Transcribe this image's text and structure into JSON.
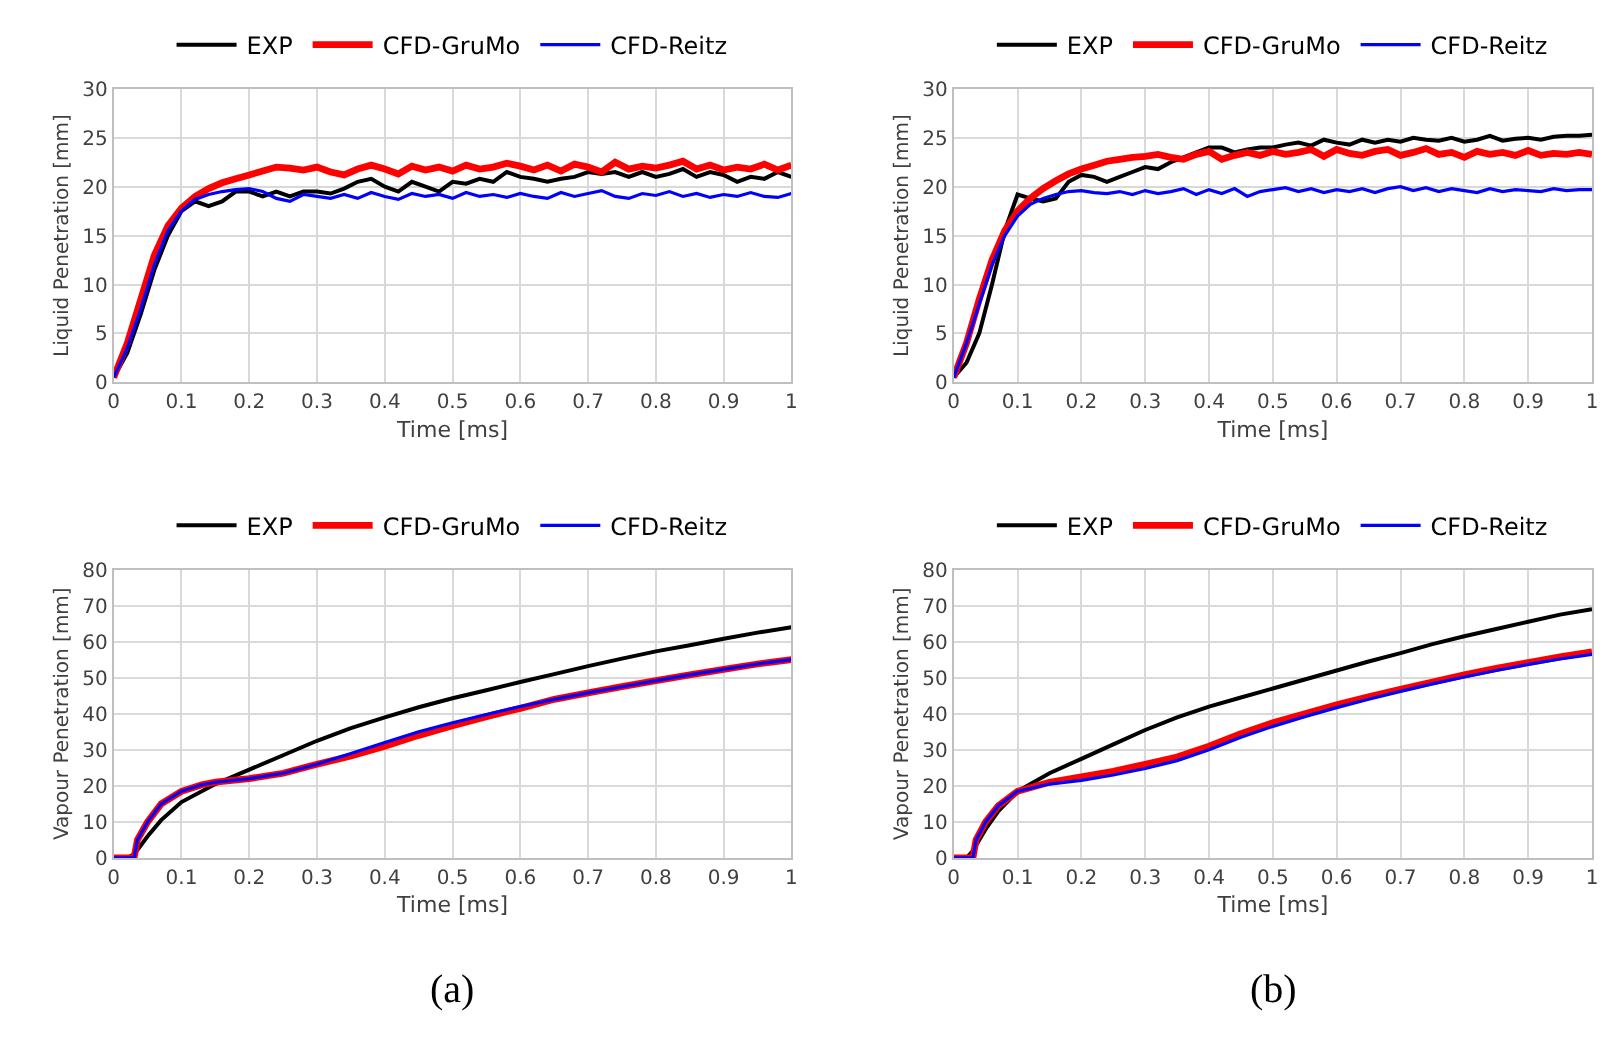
{
  "chart_data": [
    {
      "type": "line",
      "xlabel": "Time [ms]",
      "ylabel": "Liquid Penetration [mm]",
      "xlim": [
        0,
        1
      ],
      "xticks": [
        0,
        0.1,
        0.2,
        0.3,
        0.4,
        0.5,
        0.6,
        0.7,
        0.8,
        0.9,
        1
      ],
      "ylim": [
        0,
        30
      ],
      "yticks": [
        0,
        5,
        10,
        15,
        20,
        25,
        30
      ],
      "grid": true,
      "legend": "top",
      "line_style": "solid",
      "x": [
        0,
        0.02,
        0.04,
        0.06,
        0.08,
        0.1,
        0.12,
        0.14,
        0.16,
        0.18,
        0.2,
        0.22,
        0.24,
        0.26,
        0.28,
        0.3,
        0.32,
        0.34,
        0.36,
        0.38,
        0.4,
        0.42,
        0.44,
        0.46,
        0.48,
        0.5,
        0.52,
        0.54,
        0.56,
        0.58,
        0.6,
        0.62,
        0.64,
        0.66,
        0.68,
        0.7,
        0.72,
        0.74,
        0.76,
        0.78,
        0.8,
        0.82,
        0.84,
        0.86,
        0.88,
        0.9,
        0.92,
        0.94,
        0.96,
        0.98,
        1
      ],
      "series": [
        {
          "name": "EXP",
          "color": "#000000",
          "values": [
            0.5,
            3,
            7,
            11.5,
            15,
            17.5,
            18.5,
            18,
            18.5,
            19.5,
            19.5,
            19,
            19.5,
            19,
            19.5,
            19.5,
            19.3,
            19.8,
            20.5,
            20.8,
            20,
            19.5,
            20.5,
            20,
            19.5,
            20.5,
            20.3,
            20.8,
            20.5,
            21.5,
            21,
            20.8,
            20.5,
            20.8,
            21,
            21.5,
            21.3,
            21.5,
            21,
            21.5,
            21,
            21.3,
            21.8,
            21,
            21.5,
            21.2,
            20.5,
            21,
            20.8,
            21.5,
            21
          ]
        },
        {
          "name": "CFD-GruMo",
          "color": "#ff0000",
          "values": [
            0.5,
            4,
            8.5,
            13,
            16,
            17.8,
            19,
            19.8,
            20.4,
            20.8,
            21.2,
            21.6,
            22,
            21.9,
            21.7,
            22,
            21.5,
            21.2,
            21.8,
            22.2,
            21.8,
            21.3,
            22.1,
            21.7,
            22,
            21.6,
            22.2,
            21.8,
            22,
            22.4,
            22.1,
            21.7,
            22.2,
            21.6,
            22.3,
            22,
            21.5,
            22.5,
            21.8,
            22.1,
            21.9,
            22.2,
            22.6,
            21.8,
            22.2,
            21.7,
            22,
            21.8,
            22.3,
            21.7,
            22.2
          ]
        },
        {
          "name": "CFD-Reitz",
          "color": "#0000ff",
          "values": [
            0.5,
            3.5,
            7.5,
            12,
            15.5,
            17.5,
            18.7,
            19.2,
            19.5,
            19.7,
            19.8,
            19.5,
            18.8,
            18.5,
            19.2,
            19,
            18.8,
            19.2,
            18.8,
            19.4,
            19,
            18.7,
            19.3,
            19,
            19.2,
            18.8,
            19.4,
            19,
            19.2,
            18.9,
            19.3,
            19,
            18.8,
            19.4,
            19,
            19.3,
            19.6,
            19,
            18.8,
            19.3,
            19.1,
            19.5,
            19,
            19.3,
            18.9,
            19.2,
            19,
            19.4,
            19,
            18.9,
            19.3
          ]
        }
      ]
    },
    {
      "type": "line",
      "xlabel": "Time [ms]",
      "ylabel": "Liquid Penetration [mm]",
      "xlim": [
        0,
        1
      ],
      "xticks": [
        0,
        0.1,
        0.2,
        0.3,
        0.4,
        0.5,
        0.6,
        0.7,
        0.8,
        0.9,
        1
      ],
      "ylim": [
        0,
        30
      ],
      "yticks": [
        0,
        5,
        10,
        15,
        20,
        25,
        30
      ],
      "grid": true,
      "legend": "top",
      "line_style": "solid",
      "x": [
        0,
        0.02,
        0.04,
        0.06,
        0.08,
        0.1,
        0.12,
        0.14,
        0.16,
        0.18,
        0.2,
        0.22,
        0.24,
        0.26,
        0.28,
        0.3,
        0.32,
        0.34,
        0.36,
        0.38,
        0.4,
        0.42,
        0.44,
        0.46,
        0.48,
        0.5,
        0.52,
        0.54,
        0.56,
        0.58,
        0.6,
        0.62,
        0.64,
        0.66,
        0.68,
        0.7,
        0.72,
        0.74,
        0.76,
        0.78,
        0.8,
        0.82,
        0.84,
        0.86,
        0.88,
        0.9,
        0.92,
        0.94,
        0.96,
        0.98,
        1
      ],
      "series": [
        {
          "name": "EXP",
          "color": "#000000",
          "values": [
            0.5,
            2,
            5,
            10,
            15.5,
            19.2,
            18.8,
            18.5,
            18.8,
            20.5,
            21.2,
            21,
            20.5,
            21,
            21.5,
            22,
            21.8,
            22.5,
            23,
            23.5,
            24,
            24,
            23.5,
            23.8,
            24,
            24,
            24.3,
            24.5,
            24.2,
            24.8,
            24.5,
            24.3,
            24.8,
            24.5,
            24.8,
            24.6,
            25,
            24.8,
            24.7,
            25,
            24.6,
            24.8,
            25.2,
            24.7,
            24.9,
            25,
            24.8,
            25.1,
            25.2,
            25.2,
            25.3
          ]
        },
        {
          "name": "CFD-GruMo",
          "color": "#ff0000",
          "values": [
            0.5,
            4,
            8.5,
            12.5,
            15.5,
            17.5,
            18.8,
            19.8,
            20.6,
            21.3,
            21.8,
            22.2,
            22.6,
            22.8,
            23,
            23.1,
            23.3,
            23,
            22.8,
            23.3,
            23.6,
            22.8,
            23.2,
            23.5,
            23.2,
            23.6,
            23.3,
            23.5,
            23.8,
            23.1,
            23.8,
            23.4,
            23.2,
            23.6,
            23.8,
            23.2,
            23.5,
            23.9,
            23.3,
            23.5,
            23,
            23.6,
            23.3,
            23.5,
            23.2,
            23.7,
            23.2,
            23.4,
            23.3,
            23.5,
            23.3
          ]
        },
        {
          "name": "CFD-Reitz",
          "color": "#0000ff",
          "values": [
            0.5,
            4,
            8,
            12,
            15,
            17,
            18.2,
            18.8,
            19.2,
            19.5,
            19.6,
            19.4,
            19.3,
            19.5,
            19.2,
            19.6,
            19.3,
            19.5,
            19.8,
            19.2,
            19.7,
            19.3,
            19.8,
            19,
            19.5,
            19.7,
            19.9,
            19.5,
            19.8,
            19.4,
            19.7,
            19.5,
            19.8,
            19.4,
            19.8,
            20,
            19.6,
            19.9,
            19.5,
            19.8,
            19.6,
            19.4,
            19.8,
            19.5,
            19.7,
            19.6,
            19.5,
            19.8,
            19.6,
            19.7,
            19.7
          ]
        }
      ]
    },
    {
      "type": "line",
      "xlabel": "Time [ms]",
      "ylabel": "Vapour Penetration [mm]",
      "xlim": [
        0,
        1
      ],
      "xticks": [
        0,
        0.1,
        0.2,
        0.3,
        0.4,
        0.5,
        0.6,
        0.7,
        0.8,
        0.9,
        1
      ],
      "ylim": [
        0,
        80
      ],
      "yticks": [
        0,
        10,
        20,
        30,
        40,
        50,
        60,
        70,
        80
      ],
      "grid": true,
      "legend": "top",
      "line_style": "solid",
      "annotations": [
        "(a)"
      ],
      "series": [
        {
          "name": "EXP",
          "color": "#000000",
          "x": [
            0,
            0.02,
            0.03,
            0.05,
            0.07,
            0.1,
            0.15,
            0.2,
            0.25,
            0.3,
            0.35,
            0.4,
            0.45,
            0.5,
            0.55,
            0.6,
            0.65,
            0.7,
            0.75,
            0.8,
            0.85,
            0.9,
            0.95,
            1
          ],
          "values": [
            0,
            0,
            1,
            6,
            10.5,
            15.5,
            20.5,
            24.5,
            28.5,
            32.5,
            36,
            39,
            41.8,
            44.3,
            46.5,
            48.8,
            51,
            53.2,
            55.3,
            57.3,
            59,
            60.8,
            62.5,
            64
          ]
        },
        {
          "name": "CFD-GruMo",
          "color": "#ff0000",
          "x": [
            0,
            0.03,
            0.035,
            0.05,
            0.07,
            0.1,
            0.13,
            0.15,
            0.2,
            0.25,
            0.3,
            0.35,
            0.4,
            0.45,
            0.5,
            0.55,
            0.6,
            0.65,
            0.7,
            0.75,
            0.8,
            0.85,
            0.9,
            0.95,
            1
          ],
          "values": [
            0,
            0,
            5,
            10,
            15,
            18.5,
            20.3,
            21,
            22,
            23.5,
            26,
            28.3,
            31,
            34,
            36.7,
            39.2,
            41.5,
            44,
            45.8,
            47.5,
            49.2,
            50.8,
            52.3,
            53.8,
            55
          ]
        },
        {
          "name": "CFD-Reitz",
          "color": "#0000ff",
          "x": [
            0,
            0.03,
            0.035,
            0.05,
            0.07,
            0.1,
            0.13,
            0.15,
            0.2,
            0.25,
            0.3,
            0.35,
            0.4,
            0.45,
            0.5,
            0.55,
            0.6,
            0.65,
            0.7,
            0.75,
            0.8,
            0.85,
            0.9,
            0.95,
            1
          ],
          "values": [
            0,
            0,
            5,
            10,
            15,
            18.5,
            20.3,
            21,
            22,
            23.5,
            26,
            29,
            32,
            35,
            37.5,
            39.8,
            42,
            44,
            45.8,
            47.5,
            49.2,
            50.8,
            52.3,
            53.8,
            55
          ]
        }
      ]
    },
    {
      "type": "line",
      "xlabel": "Time [ms]",
      "ylabel": "Vapour Penetration [mm]",
      "xlim": [
        0,
        1
      ],
      "xticks": [
        0,
        0.1,
        0.2,
        0.3,
        0.4,
        0.5,
        0.6,
        0.7,
        0.8,
        0.9,
        1
      ],
      "ylim": [
        0,
        80
      ],
      "yticks": [
        0,
        10,
        20,
        30,
        40,
        50,
        60,
        70,
        80
      ],
      "grid": true,
      "legend": "top",
      "line_style": "solid",
      "annotations": [
        "(b)"
      ],
      "series": [
        {
          "name": "EXP",
          "color": "#000000",
          "x": [
            0,
            0.02,
            0.03,
            0.05,
            0.07,
            0.1,
            0.15,
            0.2,
            0.25,
            0.3,
            0.35,
            0.4,
            0.45,
            0.5,
            0.55,
            0.6,
            0.65,
            0.7,
            0.75,
            0.8,
            0.85,
            0.9,
            0.95,
            1
          ],
          "values": [
            0,
            0,
            2,
            8,
            13,
            18.5,
            23.5,
            27.5,
            31.5,
            35.5,
            39,
            42,
            44.5,
            47,
            49.5,
            52,
            54.5,
            56.8,
            59.3,
            61.5,
            63.5,
            65.5,
            67.5,
            69
          ]
        },
        {
          "name": "CFD-GruMo",
          "color": "#ff0000",
          "x": [
            0,
            0.03,
            0.035,
            0.05,
            0.07,
            0.1,
            0.15,
            0.2,
            0.25,
            0.3,
            0.35,
            0.4,
            0.45,
            0.5,
            0.55,
            0.6,
            0.65,
            0.7,
            0.75,
            0.8,
            0.85,
            0.9,
            0.95,
            1
          ],
          "values": [
            0,
            0,
            5,
            10,
            14.5,
            18.5,
            21,
            22.5,
            24,
            26,
            28,
            31,
            34.5,
            37.5,
            40,
            42.5,
            44.7,
            46.8,
            48.8,
            50.8,
            52.6,
            54.2,
            55.8,
            57.2
          ]
        },
        {
          "name": "CFD-Reitz",
          "color": "#0000ff",
          "x": [
            0,
            0.03,
            0.035,
            0.05,
            0.07,
            0.1,
            0.15,
            0.2,
            0.25,
            0.3,
            0.35,
            0.4,
            0.45,
            0.5,
            0.55,
            0.6,
            0.65,
            0.7,
            0.75,
            0.8,
            0.85,
            0.9,
            0.95,
            1
          ],
          "values": [
            0,
            0,
            5,
            10,
            14.5,
            18.5,
            20.5,
            21.5,
            23,
            24.8,
            27,
            30,
            33.5,
            36.5,
            39.2,
            41.7,
            44,
            46.2,
            48.3,
            50.2,
            52,
            53.7,
            55.2,
            56.5
          ]
        }
      ]
    }
  ]
}
